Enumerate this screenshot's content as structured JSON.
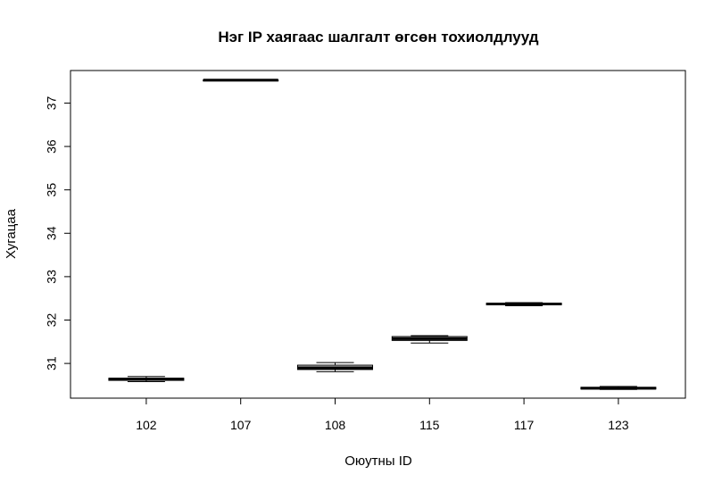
{
  "chart_data": {
    "type": "boxplot",
    "title": "Нэг IP хаягаас шалгалт өгсөн тохиолдлууд",
    "xlabel": "Оюутны ID",
    "ylabel": "Хугацаа",
    "categories": [
      "102",
      "107",
      "108",
      "115",
      "117",
      "123"
    ],
    "boxes": [
      {
        "category": "102",
        "min": 30.58,
        "q1": 30.61,
        "median": 30.64,
        "q3": 30.66,
        "max": 30.7
      },
      {
        "category": "107",
        "min": 37.53,
        "q1": 37.53,
        "median": 37.53,
        "q3": 37.53,
        "max": 37.53
      },
      {
        "category": "108",
        "min": 30.81,
        "q1": 30.86,
        "median": 30.9,
        "q3": 30.96,
        "max": 31.02
      },
      {
        "category": "115",
        "min": 31.47,
        "q1": 31.53,
        "median": 31.57,
        "q3": 31.62,
        "max": 31.64
      },
      {
        "category": "117",
        "min": 32.33,
        "q1": 32.35,
        "median": 32.37,
        "q3": 32.39,
        "max": 32.4
      },
      {
        "category": "123",
        "min": 30.4,
        "q1": 30.41,
        "median": 30.43,
        "q3": 30.45,
        "max": 30.47
      }
    ],
    "yticks": [
      31,
      32,
      33,
      34,
      35,
      36,
      37
    ],
    "ylim": [
      30.2,
      37.75
    ],
    "grid": false,
    "colors": {
      "axis": "#000000",
      "box_fill": "#d3d3d3",
      "box_stroke": "#000000",
      "median": "#000000"
    }
  }
}
